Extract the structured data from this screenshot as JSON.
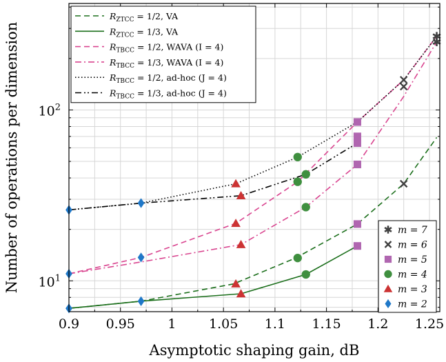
{
  "chart_data": {
    "type": "line",
    "xlabel": "Asymptotic shaping gain, dB",
    "ylabel": "Number of operations per dimension",
    "xlim": [
      0.9,
      1.26
    ],
    "ylim": [
      6.6,
      420
    ],
    "yscale": "log",
    "grid": true,
    "x_ticks": [
      "0.9",
      "0.95",
      "1",
      "1.05",
      "1.1",
      "1.15",
      "1.2",
      "1.25"
    ],
    "y_ticks": [
      "10^1",
      "10^2"
    ],
    "legend_position": "top-left",
    "series": [
      {
        "name": "R_ZTCC = 1/2, VA",
        "color": "#1a6e1a",
        "dash": "dashed",
        "x": [
          0.9,
          0.97,
          1.06,
          1.12,
          1.18,
          1.225,
          1.257
        ],
        "y": [
          6.9,
          7.6,
          9.6,
          13.6,
          21.5,
          37,
          69
        ]
      },
      {
        "name": "R_ZTCC = 1/3, VA",
        "color": "#1a6e1a",
        "dash": "solid",
        "x": [
          0.9,
          0.97,
          1.067,
          1.13,
          1.18
        ],
        "y": [
          6.9,
          7.6,
          8.4,
          10.9,
          16
        ]
      },
      {
        "name": "R_TBCC = 1/2, WAVA (I = 4)",
        "color": "#d9448f",
        "dash": "dashed",
        "x": [
          0.9,
          0.97,
          1.062,
          1.122,
          1.18,
          1.225,
          1.257
        ],
        "y": [
          11,
          13.7,
          21.7,
          38,
          85,
          150,
          270
        ]
      },
      {
        "name": "R_TBCC = 1/3, WAVA (I = 4)",
        "color": "#d9448f",
        "dash": "dashdot",
        "x": [
          0.9,
          0.97,
          1.067,
          1.13,
          1.18,
          1.225,
          1.257
        ],
        "y": [
          11,
          12.9,
          16.3,
          27,
          48,
          120,
          250
        ]
      },
      {
        "name": "R_TBCC = 1/2, ad-hoc (J = 4)",
        "color": "#000000",
        "dash": "dotted",
        "x": [
          0.9,
          0.97,
          1.062,
          1.122,
          1.18,
          1.225,
          1.257
        ],
        "y": [
          26,
          28.5,
          37,
          53,
          85,
          150,
          270
        ]
      },
      {
        "name": "R_TBCC = 1/3, ad-hoc (J = 4)",
        "color": "#000000",
        "dash": "dashdotdot",
        "x": [
          0.9,
          0.97,
          1.067,
          1.13,
          1.18
        ],
        "y": [
          26,
          28.5,
          31.5,
          42,
          64
        ]
      }
    ],
    "markers": [
      {
        "label": "m = 7",
        "symbol": "asterisk",
        "color": "#404040",
        "points": [
          [
            1.257,
            270
          ],
          [
            1.257,
            250
          ]
        ]
      },
      {
        "label": "m = 6",
        "symbol": "cross",
        "color": "#404040",
        "points": [
          [
            1.225,
            150
          ],
          [
            1.225,
            137
          ],
          [
            1.225,
            37
          ]
        ]
      },
      {
        "label": "m = 5",
        "symbol": "square",
        "color": "#b066b0",
        "points": [
          [
            1.18,
            85
          ],
          [
            1.18,
            70
          ],
          [
            1.18,
            64
          ],
          [
            1.18,
            48
          ],
          [
            1.18,
            21.5
          ],
          [
            1.18,
            16
          ]
        ]
      },
      {
        "label": "m = 4",
        "symbol": "circle",
        "color": "#3f8f3f",
        "points": [
          [
            1.122,
            53
          ],
          [
            1.122,
            38
          ],
          [
            1.13,
            42
          ],
          [
            1.13,
            27
          ],
          [
            1.122,
            13.6
          ],
          [
            1.13,
            10.9
          ]
        ]
      },
      {
        "label": "m = 3",
        "symbol": "triangle",
        "color": "#cc3333",
        "points": [
          [
            1.062,
            37
          ],
          [
            1.067,
            31.5
          ],
          [
            1.062,
            21.7
          ],
          [
            1.067,
            16.3
          ],
          [
            1.062,
            9.6
          ],
          [
            1.067,
            8.4
          ]
        ]
      },
      {
        "label": "m = 2",
        "symbol": "diamond",
        "color": "#1f78c8",
        "points": [
          [
            0.9,
            26
          ],
          [
            0.97,
            28.5
          ],
          [
            0.9,
            11
          ],
          [
            0.97,
            13.7
          ],
          [
            0.9,
            6.9
          ],
          [
            0.97,
            7.6
          ]
        ]
      }
    ]
  }
}
